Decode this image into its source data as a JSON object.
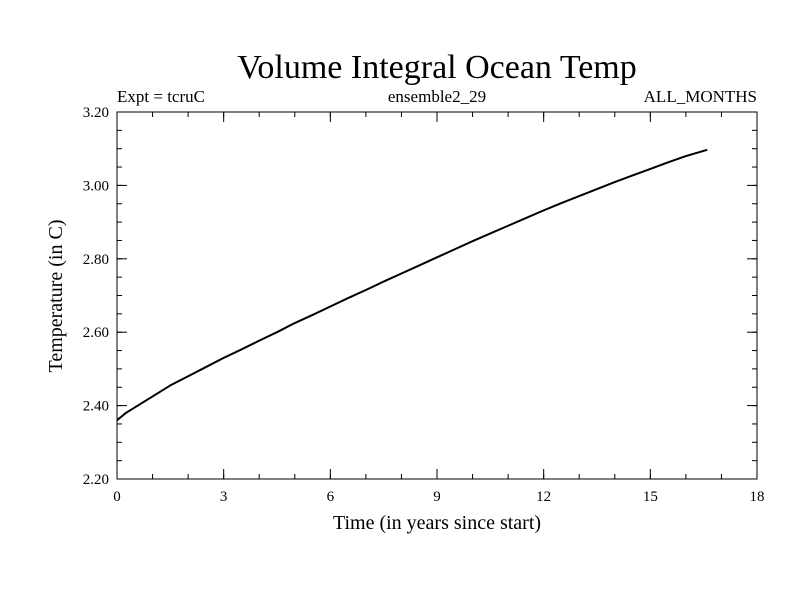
{
  "chart_data": {
    "type": "line",
    "title": "Volume Integral Ocean Temp",
    "subtitle_left": "Expt = tcruC",
    "subtitle_center": "ensemble2_29",
    "subtitle_right": "ALL_MONTHS",
    "xlabel": "Time (in years since start)",
    "ylabel": "Temperature (in C)",
    "xlim": [
      0,
      18
    ],
    "ylim": [
      2.2,
      3.2
    ],
    "x_ticks": [
      0,
      3,
      6,
      9,
      12,
      15,
      18
    ],
    "x_tick_labels": [
      "0",
      "3",
      "6",
      "9",
      "12",
      "15",
      "18"
    ],
    "y_ticks": [
      2.2,
      2.4,
      2.6,
      2.8,
      3.0,
      3.2
    ],
    "y_tick_labels": [
      "2.20",
      "2.40",
      "2.60",
      "2.80",
      "3.00",
      "3.20"
    ],
    "x_minor_step": 1,
    "y_minor_step": 0.05,
    "grid": false,
    "series": [
      {
        "name": "Volume Integral Ocean Temp",
        "color": "#000000",
        "x": [
          0,
          0.25,
          0.5,
          1,
          1.5,
          2,
          2.5,
          3,
          3.5,
          4,
          4.5,
          5,
          5.5,
          6,
          6.5,
          7,
          7.5,
          8,
          8.5,
          9,
          9.5,
          10,
          10.5,
          11,
          11.5,
          12,
          12.5,
          13,
          13.5,
          14,
          14.5,
          15,
          15.5,
          16,
          16.6
        ],
        "values": [
          2.36,
          2.38,
          2.395,
          2.425,
          2.455,
          2.48,
          2.505,
          2.53,
          2.553,
          2.577,
          2.6,
          2.625,
          2.647,
          2.67,
          2.693,
          2.715,
          2.738,
          2.76,
          2.782,
          2.804,
          2.826,
          2.848,
          2.869,
          2.89,
          2.911,
          2.932,
          2.952,
          2.971,
          2.99,
          3.009,
          3.027,
          3.045,
          3.063,
          3.08,
          3.097
        ]
      }
    ]
  }
}
